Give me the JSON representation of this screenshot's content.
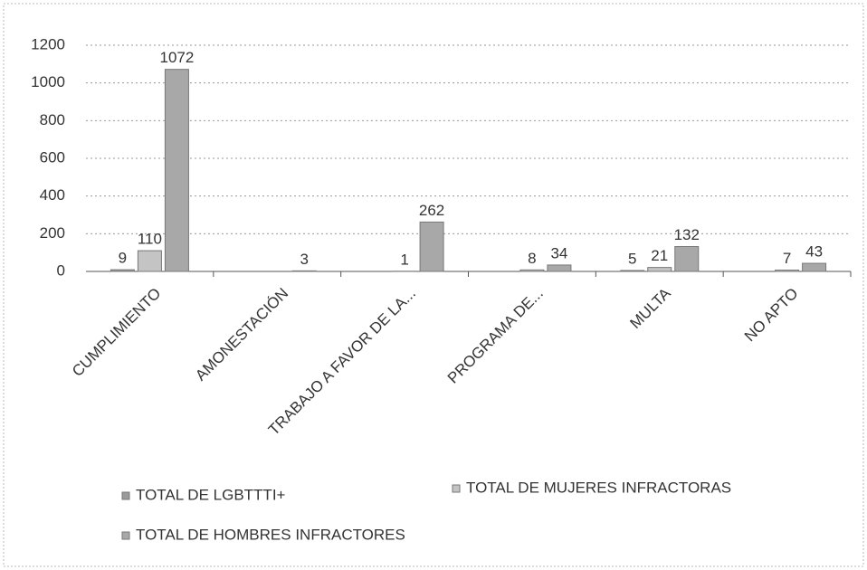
{
  "chart_data": {
    "type": "bar",
    "categories": [
      "CUMPLIMIENTO",
      "AMONESTACIÓN",
      "TRABAJO  A FAVOR DE LA...",
      "PROGRAMA DE...",
      "MULTA",
      "NO APTO"
    ],
    "series": [
      {
        "name": "TOTAL DE LGBTTTI+",
        "color": "#9a9a9a",
        "values": [
          9,
          null,
          null,
          null,
          5,
          null
        ]
      },
      {
        "name": "TOTAL DE MUJERES INFRACTORAS",
        "color": "#c4c4c4",
        "values": [
          110,
          null,
          1,
          8,
          21,
          7
        ]
      },
      {
        "name": "TOTAL DE HOMBRES INFRACTORES",
        "color": "#a8a8a8",
        "values": [
          1072,
          3,
          262,
          34,
          132,
          43
        ]
      }
    ],
    "ylim": [
      0,
      1200
    ],
    "yticks": [
      0,
      200,
      400,
      600,
      800,
      1000,
      1200
    ],
    "grid": true
  }
}
